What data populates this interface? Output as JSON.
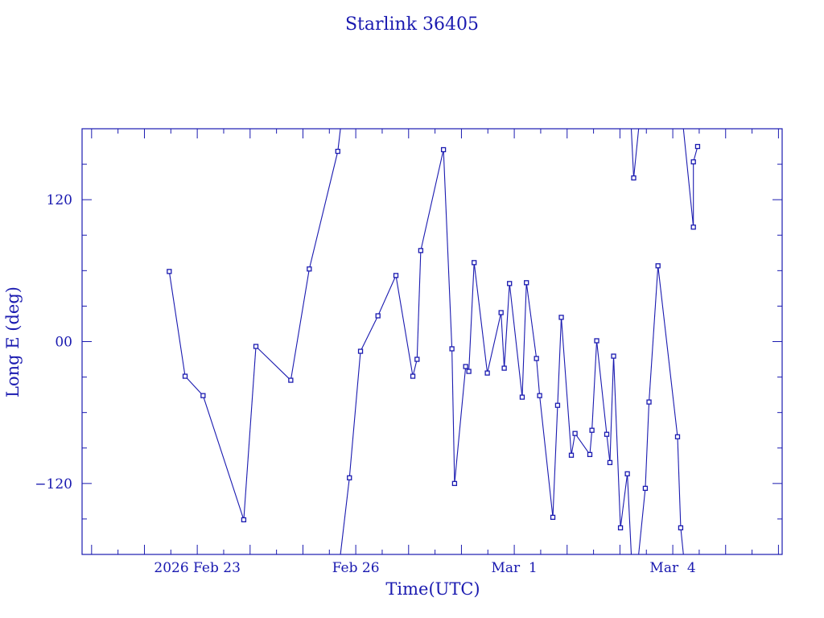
{
  "chart_data": {
    "type": "line",
    "title": "Starlink 36405",
    "xlabel": "Time(UTC)",
    "ylabel": "Long E (deg)",
    "x_units": "days since 2026 Feb 23 00:00 UTC",
    "xlim": [
      -2.18,
      11.07
    ],
    "ylim": [
      -180,
      180
    ],
    "x_ticks": [
      {
        "value": 0,
        "label": "2026 Feb 23"
      },
      {
        "value": 3,
        "label": "Feb 26"
      },
      {
        "value": 6,
        "label": "Mar  1"
      },
      {
        "value": 9,
        "label": "Mar  4"
      }
    ],
    "y_ticks": [
      {
        "value": -120,
        "label": "−120"
      },
      {
        "value": 0,
        "label": "00"
      },
      {
        "value": 120,
        "label": "120"
      }
    ],
    "x_minor_step": 0.5,
    "y_minor_step": 30,
    "wrap_longitude": true,
    "color": "#1a1ab0",
    "series": [
      {
        "name": "Starlink 36405",
        "x": [
          -0.53,
          -0.23,
          0.11,
          0.88,
          1.11,
          1.77,
          2.12,
          2.66,
          2.88,
          3.09,
          3.42,
          3.76,
          4.08,
          4.16,
          4.23,
          4.66,
          4.82,
          4.87,
          5.08,
          5.14,
          5.24,
          5.49,
          5.75,
          5.81,
          5.91,
          6.15,
          6.23,
          6.42,
          6.48,
          6.73,
          6.82,
          6.89,
          7.08,
          7.15,
          7.43,
          7.47,
          7.56,
          7.75,
          7.81,
          7.88,
          8.01,
          8.14,
          8.26,
          8.48,
          8.55,
          8.72,
          9.09,
          9.15,
          9.39,
          9.39,
          9.47
        ],
        "y": [
          59.3,
          -29.3,
          -45.7,
          -150.7,
          -4.1,
          -32.7,
          61.4,
          160.9,
          -115.2,
          -8.2,
          21.8,
          55.9,
          -29.3,
          -15.0,
          77.0,
          162.3,
          -6.1,
          -120.0,
          -21.1,
          -25.2,
          66.8,
          -26.6,
          24.5,
          -22.5,
          49.1,
          -47.0,
          49.8,
          -14.3,
          -45.7,
          -148.6,
          -53.9,
          20.5,
          -96.1,
          -77.7,
          -95.5,
          -75.0,
          0.7,
          -78.4,
          -102.3,
          -12.3,
          -157.5,
          -111.8,
          138.4,
          -124.1,
          -51.1,
          64.1,
          -80.5,
          -157.5,
          96.8,
          152.0,
          165.0
        ]
      }
    ]
  }
}
